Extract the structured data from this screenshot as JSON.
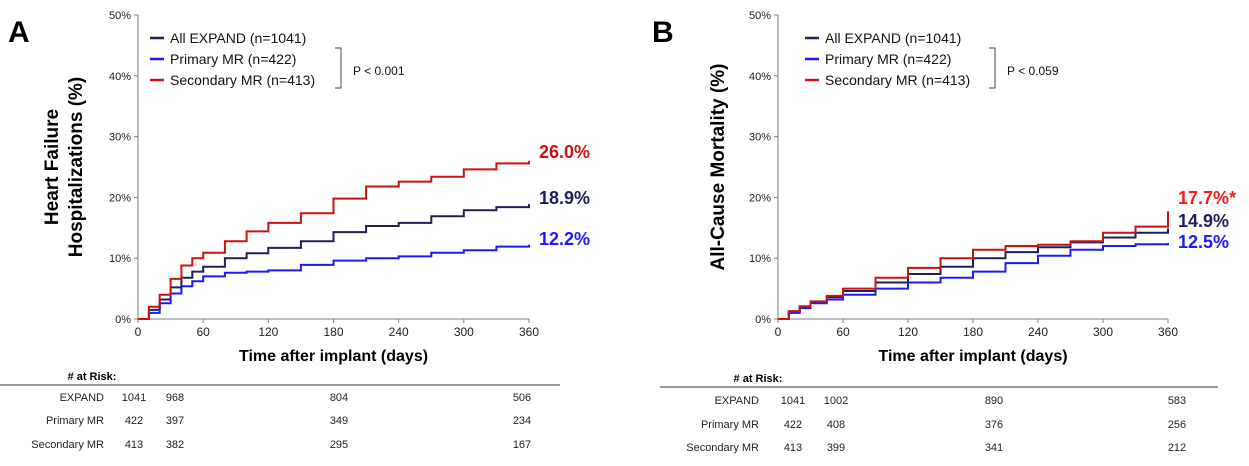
{
  "chart_data": [
    {
      "panel_letter": "A",
      "type": "line",
      "xlabel": "Time after implant (days)",
      "ylabel_lines": [
        "Heart Failure",
        "Hospitalizations (%)"
      ],
      "xlim": [
        0,
        360
      ],
      "ylim": [
        0,
        50
      ],
      "x_ticks": [
        "0",
        "60",
        "120",
        "180",
        "240",
        "300",
        "360"
      ],
      "y_ticks": [
        "0%",
        "10%",
        "20%",
        "30%",
        "40%",
        "50%"
      ],
      "legend": {
        "entries": [
          {
            "label": "All EXPAND (n=1041)",
            "color": "#1f1f5a"
          },
          {
            "label": "Primary MR (n=422)",
            "color": "#1a1aff"
          },
          {
            "label": "Secondary MR (n=413)",
            "color": "#cc1111"
          }
        ],
        "p_value": "P < 0.001"
      },
      "series": [
        {
          "name": "All EXPAND (n=1041)",
          "color": "#1f1f5a",
          "end_label": "18.9%",
          "x": [
            0,
            10,
            20,
            30,
            40,
            50,
            60,
            80,
            100,
            120,
            150,
            180,
            210,
            240,
            270,
            300,
            330,
            360
          ],
          "y": [
            0,
            1.5,
            3.2,
            5.2,
            6.8,
            7.8,
            8.6,
            10.0,
            10.8,
            11.7,
            12.8,
            14.3,
            15.3,
            15.8,
            16.9,
            17.9,
            18.4,
            18.9
          ]
        },
        {
          "name": "Primary MR (n=422)",
          "color": "#1a1aff",
          "end_label": "12.2%",
          "x": [
            0,
            10,
            20,
            30,
            40,
            50,
            60,
            80,
            100,
            120,
            150,
            180,
            210,
            240,
            270,
            300,
            330,
            360
          ],
          "y": [
            0,
            1.0,
            2.6,
            4.2,
            5.4,
            6.2,
            7.0,
            7.6,
            7.8,
            8.0,
            8.9,
            9.6,
            10.0,
            10.3,
            10.9,
            11.3,
            11.9,
            12.2
          ]
        },
        {
          "name": "Secondary MR (n=413)",
          "color": "#cc1111",
          "end_label": "26.0%",
          "x": [
            0,
            10,
            20,
            30,
            40,
            50,
            60,
            80,
            100,
            120,
            150,
            180,
            210,
            240,
            270,
            300,
            330,
            360
          ],
          "y": [
            0,
            2.0,
            4.0,
            6.6,
            8.8,
            10.0,
            10.9,
            12.8,
            14.4,
            15.8,
            17.4,
            19.8,
            21.8,
            22.6,
            23.4,
            24.6,
            25.6,
            26.0
          ]
        }
      ],
      "at_risk": {
        "title": "# at Risk:",
        "rows": [
          {
            "label": "EXPAND",
            "values": [
              "1041",
              "968",
              "804",
              "506"
            ]
          },
          {
            "label": "Primary MR",
            "values": [
              "422",
              "397",
              "349",
              "234"
            ]
          },
          {
            "label": "Secondary MR",
            "values": [
              "413",
              "382",
              "295",
              "167"
            ]
          }
        ]
      }
    },
    {
      "panel_letter": "B",
      "type": "line",
      "xlabel": "Time after implant (days)",
      "ylabel_lines": [
        "All-Cause Mortality (%)"
      ],
      "xlim": [
        0,
        360
      ],
      "ylim": [
        0,
        50
      ],
      "x_ticks": [
        "0",
        "60",
        "120",
        "180",
        "240",
        "300",
        "360"
      ],
      "y_ticks": [
        "0%",
        "10%",
        "20%",
        "30%",
        "40%",
        "50%"
      ],
      "legend": {
        "entries": [
          {
            "label": "All EXPAND (n=1041)",
            "color": "#1f1f5a"
          },
          {
            "label": "Primary MR (n=422)",
            "color": "#1a1aff"
          },
          {
            "label": "Secondary MR (n=413)",
            "color": "#cc1111"
          }
        ],
        "p_value": "P < 0.059"
      },
      "series": [
        {
          "name": "All EXPAND (n=1041)",
          "color": "#1f1f5a",
          "end_label": "14.9%",
          "x": [
            0,
            10,
            20,
            30,
            45,
            60,
            90,
            120,
            150,
            180,
            210,
            240,
            270,
            300,
            330,
            360
          ],
          "y": [
            0,
            1.2,
            2.0,
            2.8,
            3.6,
            4.6,
            6.0,
            7.4,
            8.6,
            10.0,
            11.0,
            11.8,
            12.6,
            13.4,
            14.2,
            14.9
          ]
        },
        {
          "name": "Primary MR (n=422)",
          "color": "#1a1aff",
          "end_label": "12.5%",
          "x": [
            0,
            10,
            20,
            30,
            45,
            60,
            90,
            120,
            150,
            180,
            210,
            240,
            270,
            300,
            330,
            360
          ],
          "y": [
            0,
            1.0,
            1.8,
            2.6,
            3.2,
            4.0,
            5.0,
            6.0,
            6.8,
            7.8,
            9.2,
            10.4,
            11.4,
            12.0,
            12.3,
            12.5
          ]
        },
        {
          "name": "Secondary MR (n=413)",
          "color": "#cc1111",
          "end_label": "17.7%*",
          "x": [
            0,
            10,
            20,
            30,
            45,
            60,
            90,
            120,
            150,
            180,
            210,
            240,
            270,
            300,
            330,
            360
          ],
          "y": [
            0,
            1.3,
            2.1,
            2.9,
            3.8,
            5.0,
            6.8,
            8.4,
            10.0,
            11.4,
            12.0,
            12.2,
            12.8,
            14.2,
            15.2,
            17.7
          ]
        }
      ],
      "at_risk": {
        "title": "# at Risk:",
        "rows": [
          {
            "label": "EXPAND",
            "values": [
              "1041",
              "1002",
              "890",
              "583"
            ]
          },
          {
            "label": "Primary MR",
            "values": [
              "422",
              "408",
              "376",
              "256"
            ]
          },
          {
            "label": "Secondary MR",
            "values": [
              "413",
              "399",
              "341",
              "212"
            ]
          }
        ]
      }
    }
  ]
}
